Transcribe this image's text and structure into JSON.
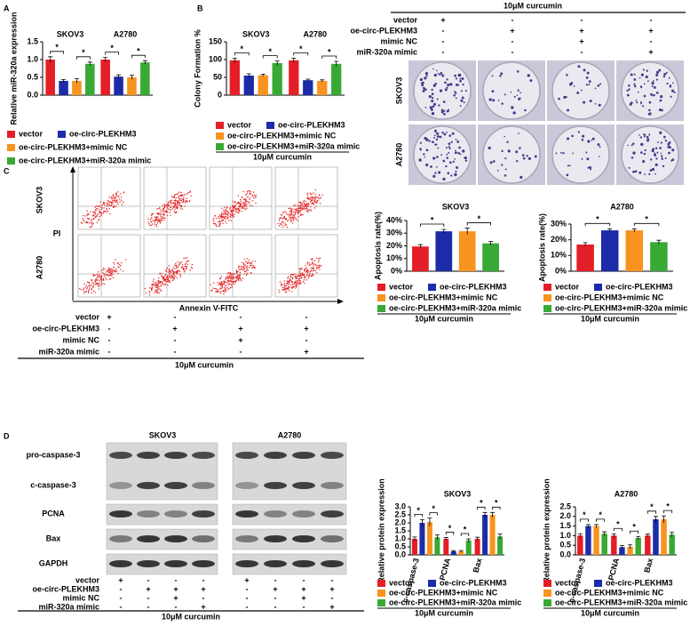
{
  "panel_labels": [
    "A",
    "B",
    "C",
    "D"
  ],
  "chart_data": [
    {
      "type": "bar",
      "ylabel": "Relative miR-320a expression",
      "categories": [
        "SKOV3",
        "A2780"
      ],
      "ylim": [
        0,
        1.5
      ],
      "yticks": [
        {
          "value": 0,
          "label": "0.0"
        },
        0.5,
        {
          "value": 1,
          "label": "1.0"
        },
        1.5
      ],
      "series": [
        {
          "name": "vector",
          "color": "#e41e26",
          "values": [
            1.0,
            1.0
          ],
          "errors": [
            0.08,
            0.06
          ]
        },
        {
          "name": "oe-circ-PLEKHM3",
          "color": "#1c2ba8",
          "values": [
            0.4,
            0.52
          ],
          "errors": [
            0.04,
            0.05
          ]
        },
        {
          "name": "oe-circ-PLEKHM3+mimic NC",
          "color": "#f7931e",
          "values": [
            0.4,
            0.5
          ],
          "errors": [
            0.06,
            0.06
          ]
        },
        {
          "name": "oe-circ-PLEKHM3+miR-320a mimic",
          "color": "#39a935",
          "values": [
            0.88,
            0.92
          ],
          "errors": [
            0.05,
            0.05
          ]
        }
      ],
      "significance_label": "*"
    },
    {
      "type": "bar",
      "ylabel": "Colony Formation %",
      "categories": [
        "SKOV3",
        "A2780"
      ],
      "ylim": [
        0,
        150
      ],
      "yticks": [
        0,
        50,
        100,
        150
      ],
      "series": [
        {
          "name": "vector",
          "color": "#e41e26",
          "values": [
            98,
            98
          ],
          "errors": [
            6,
            6
          ]
        },
        {
          "name": "oe-circ-PLEKHM3",
          "color": "#1c2ba8",
          "values": [
            55,
            42
          ],
          "errors": [
            5,
            3
          ]
        },
        {
          "name": "oe-circ-PLEKHM3+mimic NC",
          "color": "#f7931e",
          "values": [
            56,
            40
          ],
          "errors": [
            3,
            3
          ]
        },
        {
          "name": "oe-circ-PLEKHM3+miR-320a mimic",
          "color": "#39a935",
          "values": [
            90,
            88
          ],
          "errors": [
            6,
            7
          ]
        }
      ],
      "significance_label": "*",
      "legend_footer": "10μM curcumin"
    },
    {
      "type": "bar",
      "title": "SKOV3",
      "ylabel": "Apoptosis rate(%)",
      "ylim": [
        0,
        40
      ],
      "yticks": [
        {
          "value": 0,
          "label": "0%"
        },
        {
          "value": 10,
          "label": "10%"
        },
        {
          "value": 20,
          "label": "20%"
        },
        {
          "value": 30,
          "label": "30%"
        },
        {
          "value": 40,
          "label": "40%"
        }
      ],
      "series": [
        {
          "name": "vector",
          "color": "#e41e26",
          "values": [
            19.5
          ],
          "errors": [
            1.5
          ]
        },
        {
          "name": "oe-circ-PLEKHM3",
          "color": "#1c2ba8",
          "values": [
            31.5
          ],
          "errors": [
            1.5
          ]
        },
        {
          "name": "oe-circ-PLEKHM3+mimic NC",
          "color": "#f7931e",
          "values": [
            31.5
          ],
          "errors": [
            2.5
          ]
        },
        {
          "name": "oe-circ-PLEKHM3+miR-320a mimic",
          "color": "#39a935",
          "values": [
            22
          ],
          "errors": [
            1.5
          ]
        }
      ],
      "significance_label": "*",
      "legend_footer": "10μM curcumin"
    },
    {
      "type": "bar",
      "title": "A2780",
      "ylabel": "Apoptosis rate(%)",
      "ylim": [
        0,
        30
      ],
      "yticks": [
        {
          "value": 0,
          "label": "0%"
        },
        {
          "value": 10,
          "label": "10%"
        },
        {
          "value": 20,
          "label": "20%"
        },
        {
          "value": 30,
          "label": "30%"
        }
      ],
      "series": [
        {
          "name": "vector",
          "color": "#e41e26",
          "values": [
            17
          ],
          "errors": [
            1.2
          ]
        },
        {
          "name": "oe-circ-PLEKHM3",
          "color": "#1c2ba8",
          "values": [
            26
          ],
          "errors": [
            1
          ]
        },
        {
          "name": "oe-circ-PLEKHM3+mimic NC",
          "color": "#f7931e",
          "values": [
            26
          ],
          "errors": [
            1
          ]
        },
        {
          "name": "oe-circ-PLEKHM3+miR-320a mimic",
          "color": "#39a935",
          "values": [
            18.5
          ],
          "errors": [
            1.2
          ]
        }
      ],
      "significance_label": "*",
      "legend_footer": "10μM curcumin"
    },
    {
      "type": "bar",
      "title": "SKOV3",
      "ylabel": "Relative protein expression",
      "categories": [
        "c-caspase-3",
        "PCNA",
        "Bax"
      ],
      "ylim": [
        0,
        3
      ],
      "yticks": [
        {
          "value": 0,
          "label": "0.0"
        },
        0.5,
        {
          "value": 1,
          "label": "1.0"
        },
        1.5,
        {
          "value": 2,
          "label": "2.0"
        },
        2.5,
        {
          "value": 3,
          "label": "3.0"
        }
      ],
      "series": [
        {
          "name": "vector",
          "color": "#e41e26",
          "values": [
            1,
            1,
            1
          ],
          "errors": [
            0.12,
            0.08,
            0.1
          ]
        },
        {
          "name": "oe-circ-PLEKHM3",
          "color": "#1c2ba8",
          "values": [
            2.0,
            0.22,
            2.5
          ],
          "errors": [
            0.2,
            0.05,
            0.15
          ]
        },
        {
          "name": "oe-circ-PLEKHM3+mimic NC",
          "color": "#f7931e",
          "values": [
            2.05,
            0.22,
            2.5
          ],
          "errors": [
            0.25,
            0.05,
            0.15
          ]
        },
        {
          "name": "oe-circ-PLEKHM3+miR-320a mimic",
          "color": "#39a935",
          "values": [
            1.1,
            0.9,
            1.15
          ],
          "errors": [
            0.15,
            0.1,
            0.15
          ]
        }
      ],
      "significance_label": "*",
      "legend_footer": "10μM curcumin"
    },
    {
      "type": "bar",
      "title": "A2780",
      "ylabel": "Relative protein expression",
      "categories": [
        "c-caspase-3",
        "PCNA",
        "Bax"
      ],
      "ylim": [
        0,
        2.5
      ],
      "yticks": [
        {
          "value": 0,
          "label": "0.0"
        },
        0.5,
        {
          "value": 1,
          "label": "1.0"
        },
        1.5,
        {
          "value": 2,
          "label": "2.0"
        },
        2.5
      ],
      "series": [
        {
          "name": "vector",
          "color": "#e41e26",
          "values": [
            1,
            1,
            1
          ],
          "errors": [
            0.1,
            0.1,
            0.08
          ]
        },
        {
          "name": "oe-circ-PLEKHM3",
          "color": "#1c2ba8",
          "values": [
            1.5,
            0.4,
            1.85
          ],
          "errors": [
            0.08,
            0.08,
            0.15
          ]
        },
        {
          "name": "oe-circ-PLEKHM3+mimic NC",
          "color": "#f7931e",
          "values": [
            1.5,
            0.42,
            1.85
          ],
          "errors": [
            0.08,
            0.1,
            0.18
          ]
        },
        {
          "name": "oe-circ-PLEKHM3+miR-320a mimic",
          "color": "#39a935",
          "values": [
            1.1,
            0.88,
            1.05
          ],
          "errors": [
            0.1,
            0.08,
            0.12
          ]
        }
      ],
      "significance_label": "*",
      "legend_footer": "10μM curcumin"
    }
  ],
  "colony_assay": {
    "header": "10μM curcumin",
    "cell_lines": [
      "SKOV3",
      "A2780"
    ],
    "rows": [
      {
        "label": "vector",
        "marks": [
          "+",
          "-",
          "-",
          "-"
        ]
      },
      {
        "label": "oe-circ-PLEKHM3",
        "marks": [
          "-",
          "+",
          "+",
          "+"
        ]
      },
      {
        "label": "mimic NC",
        "marks": [
          "-",
          "-",
          "+",
          "-"
        ]
      },
      {
        "label": "miR-320a mimic",
        "marks": [
          "-",
          "-",
          "-",
          "+"
        ]
      }
    ]
  },
  "flow_cytometry": {
    "cell_lines": [
      "SKOV3",
      "A2780"
    ],
    "y_axis": "PI",
    "x_axis": "Annexin V-FITC",
    "footer": "10μM curcumin",
    "rows": [
      {
        "label": "vector",
        "marks": [
          "+",
          "-",
          "-",
          "-"
        ]
      },
      {
        "label": "oe-circ-PLEKHM3",
        "marks": [
          "-",
          "+",
          "+",
          "+"
        ]
      },
      {
        "label": "mimic NC",
        "marks": [
          "-",
          "-",
          "+",
          "-"
        ]
      },
      {
        "label": "miR-320a mimic",
        "marks": [
          "-",
          "-",
          "-",
          "+"
        ]
      }
    ]
  },
  "western_blot": {
    "cell_lines": [
      "SKOV3",
      "A2780"
    ],
    "proteins": [
      "pro-caspase-3",
      "c-caspase-3",
      "PCNA",
      "Bax",
      "GAPDH"
    ],
    "footer": "10μM curcumin",
    "rows": [
      {
        "label": "vector",
        "marks": [
          "+",
          "-",
          "-",
          "-",
          "+",
          "-",
          "-",
          "-"
        ]
      },
      {
        "label": "oe-circ-PLEKHM3",
        "marks": [
          "-",
          "+",
          "+",
          "+",
          "-",
          "+",
          "+",
          "+"
        ]
      },
      {
        "label": "mimic NC",
        "marks": [
          "-",
          "-",
          "+",
          "-",
          "-",
          "-",
          "+",
          "-"
        ]
      },
      {
        "label": "miR-320a mimic",
        "marks": [
          "-",
          "-",
          "-",
          "+",
          "-",
          "-",
          "-",
          "+"
        ]
      }
    ]
  }
}
